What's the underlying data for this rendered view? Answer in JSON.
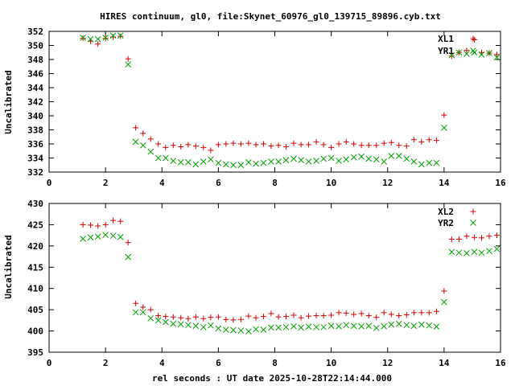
{
  "title": "HIRES continuum, gl0, file:Skynet_60976_gl0_139715_89896.cyb.txt",
  "xlabel": "rel seconds : UT date 2025-10-28T22:14:44.000",
  "chart_data": [
    {
      "type": "scatter",
      "ylabel": "Uncalibrated",
      "xlim": [
        0,
        16
      ],
      "ylim": [
        332,
        352
      ],
      "xticks": [
        0,
        2,
        4,
        6,
        8,
        10,
        12,
        14,
        16
      ],
      "xtick_labels": [
        "0",
        "2",
        "4",
        "6",
        "8",
        "10",
        "12",
        "14",
        "16"
      ],
      "yticks": [
        332,
        334,
        336,
        338,
        340,
        342,
        344,
        346,
        348,
        350,
        352
      ],
      "ytick_labels": [
        "332",
        "334",
        "336",
        "338",
        "340",
        "342",
        "344",
        "346",
        "348",
        "350",
        "352"
      ],
      "x": [
        1.2,
        1.47,
        1.73,
        2.0,
        2.27,
        2.53,
        2.8,
        3.07,
        3.33,
        3.6,
        3.87,
        4.13,
        4.4,
        4.67,
        4.93,
        5.2,
        5.47,
        5.73,
        6.0,
        6.27,
        6.53,
        6.8,
        7.07,
        7.33,
        7.6,
        7.87,
        8.13,
        8.4,
        8.67,
        8.93,
        9.2,
        9.47,
        9.73,
        10.0,
        10.27,
        10.53,
        10.8,
        11.07,
        11.33,
        11.6,
        11.87,
        12.13,
        12.4,
        12.67,
        12.93,
        13.2,
        13.47,
        13.73,
        14.0,
        14.27,
        14.53,
        14.8,
        15.07,
        15.33,
        15.6,
        15.87
      ],
      "series": [
        {
          "name": "XL1",
          "marker": "plus",
          "color": "#d40000",
          "values": [
            351.0,
            350.6,
            350.2,
            351.0,
            351.2,
            351.3,
            348.1,
            338.3,
            337.5,
            336.7,
            336.0,
            335.5,
            335.8,
            335.6,
            335.9,
            335.7,
            335.5,
            335.1,
            335.9,
            336.0,
            336.1,
            336.0,
            336.1,
            335.9,
            336.0,
            335.7,
            335.8,
            335.6,
            336.1,
            335.9,
            335.9,
            336.3,
            335.9,
            335.5,
            336.0,
            336.3,
            336.0,
            335.8,
            335.8,
            335.8,
            336.1,
            336.2,
            335.8,
            335.7,
            336.6,
            336.3,
            336.6,
            336.5,
            340.1,
            348.5,
            349.0,
            349.3,
            350.8,
            349.0,
            348.9,
            348.7
          ]
        },
        {
          "name": "YR1",
          "marker": "cross",
          "color": "#00a000",
          "values": [
            351.1,
            350.9,
            350.9,
            351.1,
            351.4,
            351.4,
            347.3,
            336.3,
            335.8,
            334.9,
            334.0,
            334.0,
            333.6,
            333.4,
            333.4,
            333.1,
            333.5,
            333.8,
            333.3,
            333.1,
            333.0,
            333.0,
            333.4,
            333.2,
            333.3,
            333.5,
            333.5,
            333.7,
            333.9,
            333.7,
            333.5,
            333.6,
            333.9,
            334.0,
            333.6,
            333.8,
            334.1,
            334.2,
            333.9,
            333.8,
            333.5,
            334.3,
            334.3,
            333.9,
            333.5,
            333.1,
            333.3,
            333.3,
            338.3,
            348.6,
            349.0,
            348.8,
            349.0,
            348.7,
            348.9,
            348.3
          ]
        }
      ]
    },
    {
      "type": "scatter",
      "ylabel": "Uncalibrated",
      "xlim": [
        0,
        16
      ],
      "ylim": [
        395,
        430
      ],
      "xticks": [
        0,
        2,
        4,
        6,
        8,
        10,
        12,
        14,
        16
      ],
      "xtick_labels": [
        "0",
        "2",
        "4",
        "6",
        "8",
        "10",
        "12",
        "14",
        "16"
      ],
      "yticks": [
        395,
        400,
        405,
        410,
        415,
        420,
        425,
        430
      ],
      "ytick_labels": [
        "395",
        "400",
        "405",
        "410",
        "415",
        "420",
        "425",
        "430"
      ],
      "x": [
        1.2,
        1.47,
        1.73,
        2.0,
        2.27,
        2.53,
        2.8,
        3.07,
        3.33,
        3.6,
        3.87,
        4.13,
        4.4,
        4.67,
        4.93,
        5.2,
        5.47,
        5.73,
        6.0,
        6.27,
        6.53,
        6.8,
        7.07,
        7.33,
        7.6,
        7.87,
        8.13,
        8.4,
        8.67,
        8.93,
        9.2,
        9.47,
        9.73,
        10.0,
        10.27,
        10.53,
        10.8,
        11.07,
        11.33,
        11.6,
        11.87,
        12.13,
        12.4,
        12.67,
        12.93,
        13.2,
        13.47,
        13.73,
        14.0,
        14.27,
        14.53,
        14.8,
        15.07,
        15.33,
        15.6,
        15.87
      ],
      "series": [
        {
          "name": "XL2",
          "marker": "plus",
          "color": "#d40000",
          "values": [
            425.0,
            424.9,
            424.7,
            425.0,
            426.0,
            425.8,
            420.8,
            406.5,
            405.6,
            405.0,
            403.6,
            403.4,
            403.3,
            403.1,
            402.9,
            403.3,
            402.9,
            403.2,
            403.3,
            402.7,
            402.6,
            402.7,
            403.5,
            403.1,
            403.4,
            404.1,
            403.3,
            403.4,
            403.7,
            403.1,
            403.5,
            403.6,
            403.6,
            403.7,
            404.3,
            404.2,
            403.9,
            404.1,
            403.6,
            403.2,
            404.3,
            403.9,
            403.6,
            403.8,
            404.3,
            404.3,
            404.3,
            404.6,
            409.4,
            421.6,
            421.6,
            422.3,
            422.0,
            421.9,
            422.3,
            422.5
          ]
        },
        {
          "name": "YR2",
          "marker": "cross",
          "color": "#00a000",
          "values": [
            421.7,
            422.0,
            422.2,
            422.6,
            422.4,
            422.1,
            417.4,
            404.4,
            404.4,
            403.0,
            402.5,
            402.1,
            401.7,
            401.6,
            401.4,
            401.2,
            400.9,
            401.3,
            400.6,
            400.3,
            400.2,
            400.1,
            399.9,
            400.4,
            400.3,
            400.8,
            400.8,
            400.9,
            401.1,
            400.8,
            401.0,
            400.9,
            400.9,
            401.2,
            401.1,
            401.4,
            401.2,
            401.1,
            401.2,
            400.7,
            401.1,
            401.5,
            401.7,
            401.4,
            401.2,
            401.5,
            401.3,
            401.0,
            406.8,
            418.6,
            418.4,
            418.3,
            418.6,
            418.4,
            418.8,
            419.3
          ]
        }
      ]
    }
  ]
}
